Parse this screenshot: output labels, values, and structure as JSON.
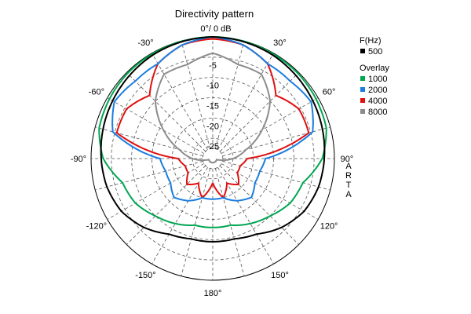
{
  "chart_data": {
    "type": "polar-line",
    "title": "Directivity pattern",
    "radial_unit_label": "0°/ 0 dB",
    "r_range_db": [
      -30,
      0
    ],
    "r_ticks": [
      -5,
      -10,
      -15,
      -20,
      -25
    ],
    "r_tick_labels": [
      "-5",
      "-10",
      "-15",
      "-20",
      "-25"
    ],
    "angle_ticks": [
      {
        "deg": -30,
        "label": "-30°"
      },
      {
        "deg": 30,
        "label": "30°"
      },
      {
        "deg": -60,
        "label": "-60°"
      },
      {
        "deg": 60,
        "label": "60°"
      },
      {
        "deg": -90,
        "label": "-90°"
      },
      {
        "deg": 90,
        "label": "90°"
      },
      {
        "deg": -120,
        "label": "-120°"
      },
      {
        "deg": 120,
        "label": "120°"
      },
      {
        "deg": -150,
        "label": "-150°"
      },
      {
        "deg": 150,
        "label": "150°"
      },
      {
        "deg": 180,
        "label": "180°"
      }
    ],
    "grid": true,
    "legend": {
      "placement": "right",
      "header": "F(Hz)",
      "overlay_header": "Overlay"
    },
    "watermark": "ARTA",
    "angles_deg": [
      -180,
      -165,
      -150,
      -135,
      -120,
      -105,
      -90,
      -75,
      -60,
      -45,
      -30,
      -15,
      0,
      15,
      30,
      45,
      60,
      75,
      90,
      105,
      120,
      135,
      150,
      165,
      180
    ],
    "series": [
      {
        "name": "500",
        "color": "#000000",
        "values_db": [
          -9.5,
          -9.5,
          -8.5,
          -6.0,
          -4.0,
          -3.0,
          -2.5,
          -2.0,
          -1.5,
          -1.0,
          -0.5,
          -0.2,
          0,
          -0.2,
          -0.5,
          -1.0,
          -1.5,
          -2.0,
          -2.5,
          -3.0,
          -4.0,
          -6.0,
          -8.5,
          -9.5,
          -9.5
        ]
      },
      {
        "name": "1000",
        "color": "#00a651",
        "values_db": [
          -13.0,
          -13.0,
          -11.5,
          -10.0,
          -8.0,
          -7.0,
          -3.0,
          -1.0,
          -0.6,
          -0.3,
          -0.2,
          -0.1,
          0,
          -0.1,
          -0.2,
          -0.3,
          -0.6,
          -1.0,
          -3.0,
          -7.0,
          -8.0,
          -10.0,
          -11.5,
          -13.0,
          -13.0
        ]
      },
      {
        "name": "2000",
        "color": "#1a7de0",
        "values_db": [
          -20.0,
          -20.0,
          -18.0,
          -16.5,
          -18.0,
          -18.0,
          -17.0,
          -4.5,
          -2.0,
          -3.0,
          -3.0,
          -1.0,
          0,
          -1.0,
          -3.0,
          -3.0,
          -2.0,
          -4.5,
          -17.0,
          -18.0,
          -18.0,
          -16.5,
          -18.0,
          -20.0,
          -20.0
        ]
      },
      {
        "name": "4000",
        "color": "#e01010",
        "values_db": [
          -24.0,
          -20.0,
          -23.0,
          -21.0,
          -23.0,
          -23.0,
          -21.5,
          -5.5,
          -5.5,
          -8.0,
          -3.0,
          -1.0,
          -0.5,
          -1.0,
          -3.0,
          -8.0,
          -5.5,
          -5.5,
          -21.5,
          -23.0,
          -23.0,
          -21.0,
          -23.0,
          -20.0,
          -24.0
        ]
      },
      {
        "name": "8000",
        "color": "#8c8c8c",
        "values_db": [
          -29.0,
          -29.0,
          -29.0,
          -29.0,
          -29.0,
          -29.0,
          -25.0,
          -21.5,
          -16.0,
          -10.0,
          -6.0,
          -6.0,
          -4.0,
          -6.0,
          -6.0,
          -10.0,
          -16.0,
          -21.5,
          -25.0,
          -29.0,
          -29.0,
          -29.0,
          -29.0,
          -29.0,
          -29.0
        ]
      }
    ]
  }
}
